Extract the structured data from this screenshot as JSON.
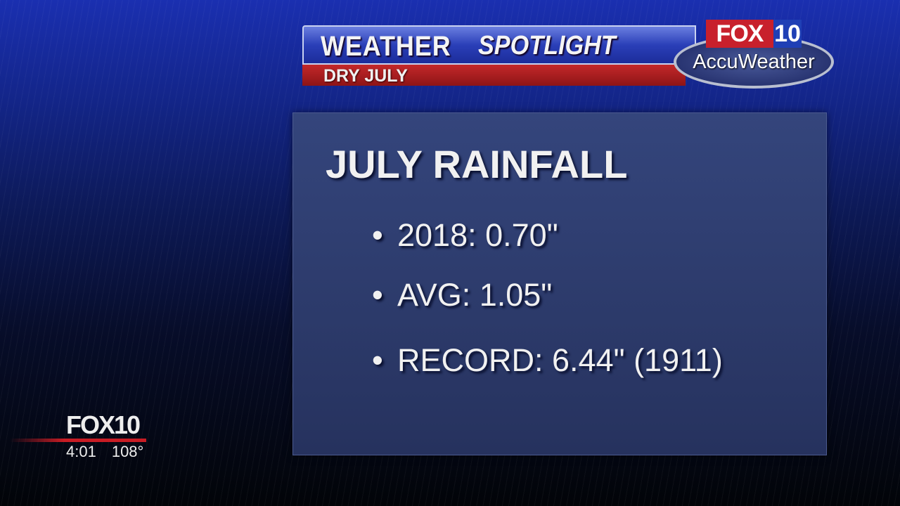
{
  "banner": {
    "title_left": "WEATHER",
    "title_right": "SPOTLIGHT",
    "subtitle": "DRY JULY"
  },
  "logo": {
    "fox": "FOX",
    "number": "10",
    "brand": "AccuWeather"
  },
  "panel": {
    "title": "JULY RAINFALL",
    "items": [
      {
        "bullet": "•",
        "text": "2018: 0.70\""
      },
      {
        "bullet": "•",
        "text": "AVG: 1.05\""
      },
      {
        "bullet": "•",
        "text": "RECORD: 6.44\" (1911)"
      }
    ]
  },
  "bug": {
    "logo": "FOX10",
    "time": "4:01",
    "temperature": "108°"
  },
  "colors": {
    "banner_blue": "#2a3fb8",
    "banner_red": "#c4282a",
    "panel": "#2c3a6a"
  }
}
